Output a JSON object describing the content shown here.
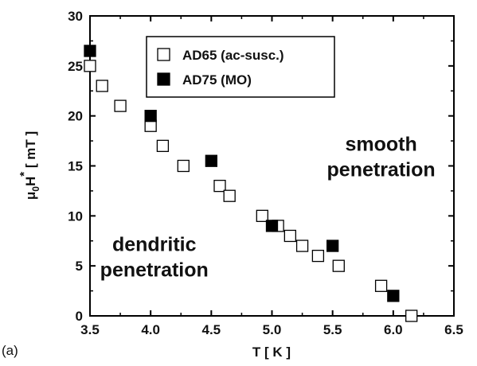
{
  "panel_label": "(a)",
  "chart_data": {
    "type": "scatter",
    "title": "",
    "xlabel": "T [ K ]",
    "ylabel_parts": {
      "mu": "μ",
      "sub": "0",
      "H": "H",
      "star": "*",
      "unit": " [ mT ]"
    },
    "xlim": [
      3.5,
      6.5
    ],
    "ylim": [
      0,
      30
    ],
    "xticks": [
      "3.5",
      "4.0",
      "4.5",
      "5.0",
      "5.5",
      "6.0",
      "6.5"
    ],
    "yticks": [
      "0",
      "5",
      "10",
      "15",
      "20",
      "25",
      "30"
    ],
    "grid": false,
    "legend_position": "top-center",
    "series": [
      {
        "name": "AD65 (ac-susc.)",
        "marker": "open-square",
        "color": "#000000",
        "points": [
          [
            3.5,
            25
          ],
          [
            3.6,
            23
          ],
          [
            3.75,
            21
          ],
          [
            4.0,
            19
          ],
          [
            4.1,
            17
          ],
          [
            4.27,
            15
          ],
          [
            4.57,
            13
          ],
          [
            4.65,
            12
          ],
          [
            4.92,
            10
          ],
          [
            5.05,
            9
          ],
          [
            5.15,
            8
          ],
          [
            5.25,
            7
          ],
          [
            5.38,
            6
          ],
          [
            5.55,
            5
          ],
          [
            5.9,
            3
          ],
          [
            6.15,
            0
          ]
        ]
      },
      {
        "name": "AD75 (MO)",
        "marker": "filled-square",
        "color": "#000000",
        "points": [
          [
            3.5,
            26.5
          ],
          [
            4.0,
            20
          ],
          [
            4.5,
            15.5
          ],
          [
            5.0,
            9
          ],
          [
            5.5,
            7
          ],
          [
            6.0,
            2
          ]
        ]
      }
    ],
    "annotations": [
      {
        "lines": [
          "smooth",
          "penetration"
        ],
        "at": [
          5.9,
          16.5
        ]
      },
      {
        "lines": [
          "dendritic",
          "penetration"
        ],
        "at": [
          4.03,
          6.5
        ]
      }
    ]
  }
}
